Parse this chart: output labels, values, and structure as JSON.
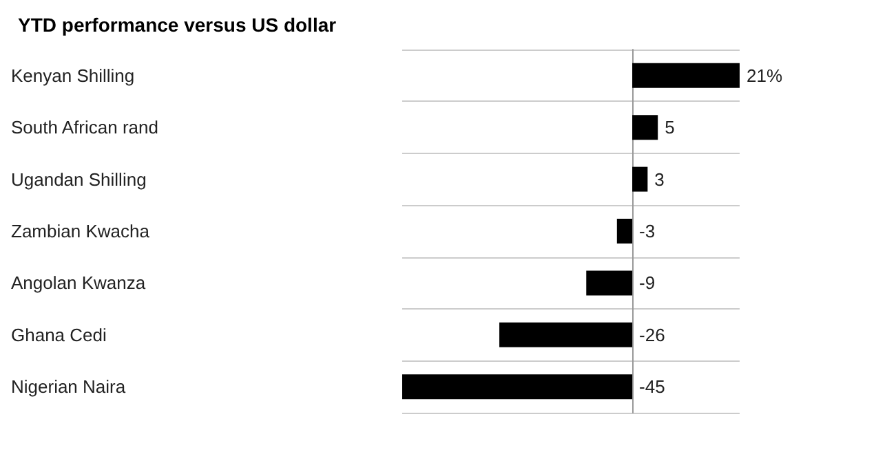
{
  "chart_data": {
    "type": "bar",
    "orientation": "horizontal",
    "title": "YTD performance versus US dollar",
    "categories": [
      "Kenyan Shilling",
      "South African rand",
      "Ugandan Shilling",
      "Zambian Kwacha",
      "Angolan Kwanza",
      "Ghana Cedi",
      "Nigerian Naira"
    ],
    "values": [
      21,
      5,
      3,
      -3,
      -9,
      -26,
      -45
    ],
    "value_labels": [
      "21%",
      "5",
      "3",
      "-3",
      "-9",
      "-26",
      "-45"
    ],
    "color": "#000000",
    "grid": "y"
  }
}
